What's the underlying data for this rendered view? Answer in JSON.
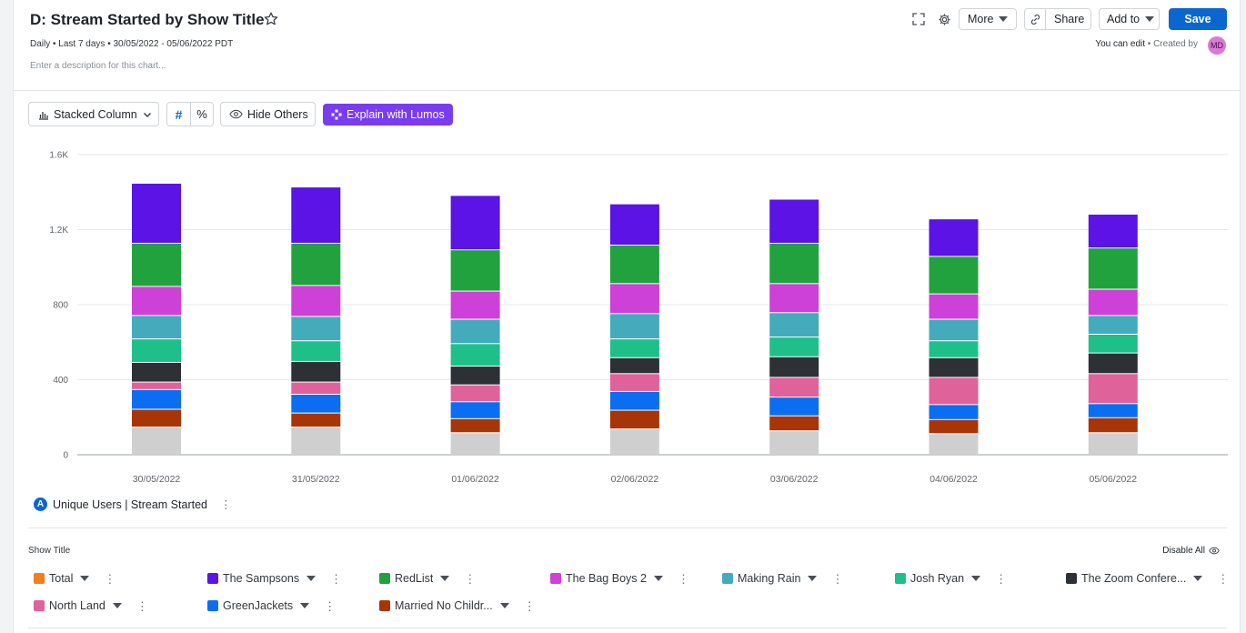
{
  "header": {
    "title": "D: Stream Started by Show Title",
    "meta": "Daily • Last 7 days • 30/05/2022 - 05/06/2022 PDT",
    "description_placeholder": "Enter a description for this chart...",
    "more_label": "More",
    "share_label": "Share",
    "add_to_label": "Add to",
    "save_label": "Save",
    "edit_text": "You can edit",
    "created_by_text": "• Created by",
    "avatar_initials": "MD"
  },
  "toolbar": {
    "chart_type_label": "Stacked Column",
    "hash_label": "#",
    "percent_label": "%",
    "hide_others_label": "Hide Others",
    "lumos_label": "Explain with Lumos"
  },
  "metric": {
    "badge": "A",
    "label": "Unique Users | Stream Started"
  },
  "breakdown": {
    "section_label": "Show Title",
    "disable_all_label": "Disable All"
  },
  "legend": [
    {
      "name": "Total",
      "color": "#f07f1e"
    },
    {
      "name": "The Sampsons",
      "color": "#5b13e6"
    },
    {
      "name": "RedList",
      "color": "#22a13f"
    },
    {
      "name": "The Bag Boys 2",
      "color": "#cd41d8"
    },
    {
      "name": "Making Rain",
      "color": "#44abbd"
    },
    {
      "name": "Josh Ryan",
      "color": "#1fbf8a"
    },
    {
      "name": "The Zoom Confere...",
      "color": "#2d3136"
    },
    {
      "name": "North Land",
      "color": "#e0629a"
    },
    {
      "name": "GreenJackets",
      "color": "#0b6ef2"
    },
    {
      "name": "Married No Childr...",
      "color": "#a73508"
    }
  ],
  "chart_data": {
    "type": "bar",
    "stacked": true,
    "categories": [
      "30/05/2022",
      "31/05/2022",
      "01/06/2022",
      "02/06/2022",
      "03/06/2022",
      "04/06/2022",
      "05/06/2022"
    ],
    "ylim": [
      0,
      1600
    ],
    "yticks": [
      0,
      400,
      800,
      1200,
      1600
    ],
    "ytick_labels": [
      "0",
      "400",
      "800",
      "1.2K",
      "1.6K"
    ],
    "grid": true,
    "series": [
      {
        "name": "",
        "color": "#cfcfcf",
        "values": [
          145,
          145,
          115,
          135,
          125,
          110,
          115
        ]
      },
      {
        "name": "Married No Childr...",
        "color": "#a73508",
        "values": [
          95,
          75,
          75,
          100,
          80,
          75,
          80
        ]
      },
      {
        "name": "GreenJackets",
        "color": "#0b6ef2",
        "values": [
          105,
          100,
          90,
          100,
          100,
          80,
          75
        ]
      },
      {
        "name": "North Land",
        "color": "#e0629a",
        "values": [
          40,
          65,
          90,
          95,
          105,
          145,
          160
        ]
      },
      {
        "name": "The Zoom Confere...",
        "color": "#2d3136",
        "values": [
          105,
          110,
          100,
          85,
          110,
          105,
          110
        ]
      },
      {
        "name": "Josh Ryan",
        "color": "#1fbf8a",
        "values": [
          125,
          110,
          120,
          100,
          105,
          90,
          100
        ]
      },
      {
        "name": "Making Rain",
        "color": "#44abbd",
        "values": [
          125,
          130,
          130,
          135,
          130,
          115,
          100
        ]
      },
      {
        "name": "The Bag Boys 2",
        "color": "#cd41d8",
        "values": [
          155,
          165,
          150,
          160,
          155,
          135,
          140
        ]
      },
      {
        "name": "RedList",
        "color": "#22a13f",
        "values": [
          230,
          225,
          220,
          205,
          215,
          200,
          220
        ]
      },
      {
        "name": "The Sampsons",
        "color": "#5b13e6",
        "values": [
          320,
          300,
          290,
          220,
          235,
          200,
          180
        ]
      }
    ]
  }
}
